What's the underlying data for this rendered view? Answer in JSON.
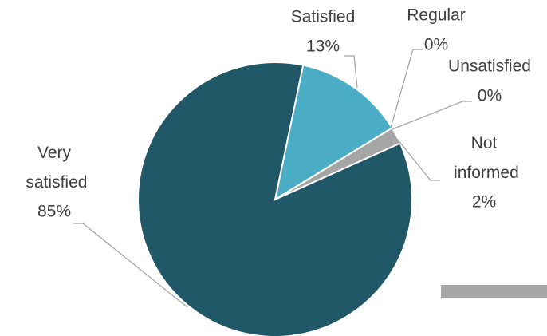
{
  "chart_data": {
    "type": "pie",
    "categories": [
      "Satisfied",
      "Regular",
      "Unsatisfied",
      "Not informed",
      "Very satisfied"
    ],
    "values": [
      13,
      0,
      0,
      2,
      85
    ],
    "value_labels": [
      "13%",
      "0%",
      "0%",
      "2%",
      "85%"
    ],
    "colors": [
      "#4bacc6",
      "#f79646",
      "#8064a2",
      "#a5a5a5",
      "#215868"
    ]
  }
}
